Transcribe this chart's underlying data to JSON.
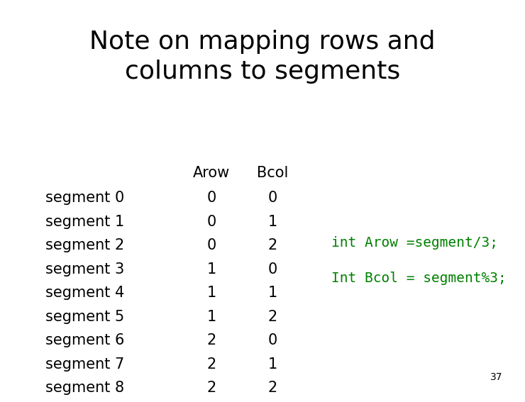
{
  "title_line1": "Note on mapping rows and",
  "title_line2": "columns to segments",
  "title_fontsize": 26,
  "title_color": "#000000",
  "background_color": "#ffffff",
  "segments": [
    "segment 0",
    "segment 1",
    "segment 2",
    "segment 3",
    "segment 4",
    "segment 5",
    "segment 6",
    "segment 7",
    "segment 8"
  ],
  "arow_values": [
    0,
    0,
    0,
    1,
    1,
    1,
    2,
    2,
    2
  ],
  "bcol_values": [
    0,
    1,
    2,
    0,
    1,
    2,
    0,
    1,
    2
  ],
  "header_arow": "Arow",
  "header_bcol": "Bcol",
  "code_line1": "int Arow =segment/3;",
  "code_line2": "Int Bcol = segment%3;",
  "code_color": "#008000",
  "code_fontsize": 14,
  "table_fontsize": 15,
  "page_number": "37",
  "page_num_fontsize": 10
}
